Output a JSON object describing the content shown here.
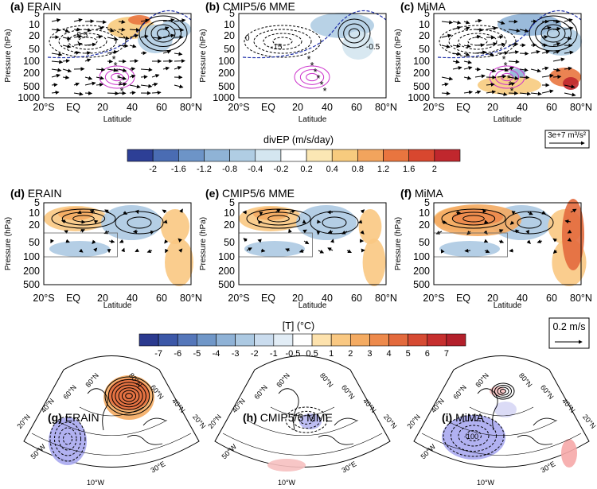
{
  "chart_data": [
    {
      "type": "heatmap",
      "row": 1,
      "panels": [
        {
          "letter": "(a)",
          "title": "ERAIN"
        },
        {
          "letter": "(b)",
          "title": "CMIP5/6 MME"
        },
        {
          "letter": "(c)",
          "title": "MiMA"
        }
      ],
      "ylabel": "Pressure (hPa)",
      "xlabel": "Latitude",
      "y_ticks": [
        "5",
        "10",
        "20",
        "50",
        "100",
        "200",
        "500",
        "1000"
      ],
      "x_ticks": [
        "20°S",
        "EQ",
        "20",
        "40",
        "60",
        "80°N"
      ],
      "contour_labels": [
        "-0.5",
        "-1",
        "0",
        "-15",
        "-0.5"
      ],
      "vector_reference": "3e+7 m³/s²",
      "colorbar": {
        "title": "divEP (m/s/day)",
        "ticks": [
          "-2",
          "-1.6",
          "-1.2",
          "-0.8",
          "-0.4",
          "-0.2",
          "0.2",
          "0.4",
          "0.8",
          "1.2",
          "1.6",
          "2"
        ],
        "colors": [
          "#2d3f96",
          "#4a6cb3",
          "#6d94c7",
          "#8fb3d6",
          "#b0cde3",
          "#d4e6f0",
          "#ffffff",
          "#fbe7b4",
          "#f7cb7e",
          "#f2a45d",
          "#e9753f",
          "#d8472f",
          "#c0272d"
        ]
      }
    },
    {
      "type": "heatmap",
      "row": 2,
      "panels": [
        {
          "letter": "(d)",
          "title": "ERAIN"
        },
        {
          "letter": "(e)",
          "title": "CMIP5/6 MME"
        },
        {
          "letter": "(f)",
          "title": "MiMA"
        }
      ],
      "ylabel": "Pressure (hPa)",
      "xlabel": "Latitude",
      "y_ticks": [
        "5",
        "10",
        "20",
        "50",
        "100",
        "200",
        "500"
      ],
      "x_ticks": [
        "20°S",
        "EQ",
        "20",
        "40",
        "60",
        "80°N"
      ],
      "vector_reference": "0.2 m/s",
      "colorbar": {
        "title": "[T] (°C)",
        "ticks": [
          "-7",
          "-6",
          "-5",
          "-4",
          "-3",
          "-2",
          "-1",
          "-0.5",
          "0.5",
          "1",
          "2",
          "3",
          "4",
          "5",
          "6",
          "7"
        ],
        "colors": [
          "#2b3a8f",
          "#3c58a8",
          "#5577ba",
          "#7097c8",
          "#8fb2d6",
          "#acc9e2",
          "#cadcee",
          "#e2edf6",
          "#ffffff",
          "#fde2ad",
          "#f9c882",
          "#f4ab62",
          "#ed8a4c",
          "#e36a3d",
          "#d64b33",
          "#c62f2e",
          "#b3202b"
        ]
      }
    },
    {
      "type": "heatmap",
      "row": 3,
      "panels": [
        {
          "letter": "(g)",
          "title": "ERAIN"
        },
        {
          "letter": "(h)",
          "title": "CMIP5/6 MME"
        },
        {
          "letter": "(i)",
          "title": "MiMA"
        }
      ],
      "map_labels": [
        "80°N",
        "60°N",
        "40°N",
        "20°N",
        "50°W",
        "10°W",
        "30°E"
      ],
      "contour_labels": [
        "-100"
      ]
    }
  ]
}
